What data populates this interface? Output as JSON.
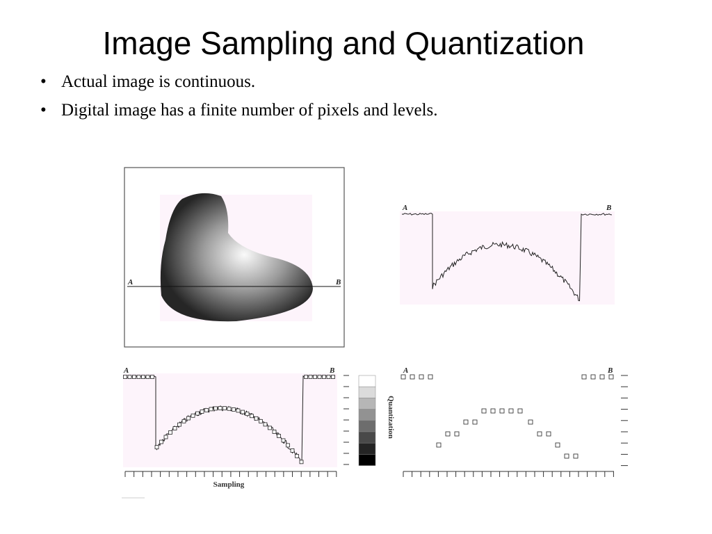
{
  "header": {
    "title": "Image Sampling and Quantization"
  },
  "bullets": [
    "Actual image is continuous.",
    "Digital image has a finite number of pixels and levels."
  ],
  "figures": [
    {
      "label_a": "A",
      "label_b": "B"
    },
    {
      "label_a": "A",
      "label_b": "B"
    },
    {
      "label_a": "A",
      "label_b": "B",
      "axis_label": "Sampling",
      "scale_label": "Quantization"
    },
    {
      "label_a": "A",
      "label_b": "B"
    }
  ]
}
